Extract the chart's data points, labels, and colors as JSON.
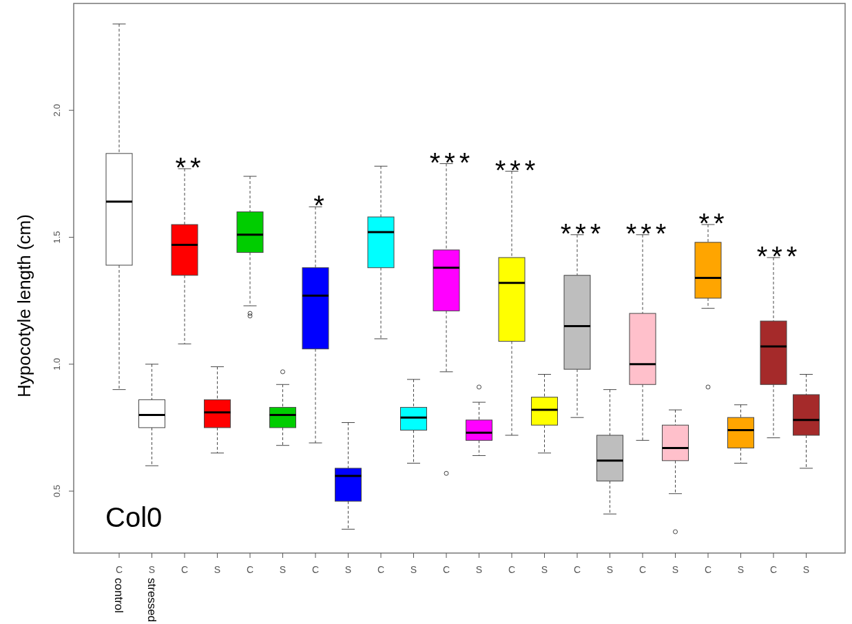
{
  "chart_data": {
    "type": "box",
    "ylabel": "Hypocotyle length (cm)",
    "categories": [
      "C",
      "S",
      "C",
      "S",
      "C",
      "S",
      "C",
      "S",
      "C",
      "S",
      "C",
      "S",
      "C",
      "S",
      "C",
      "S",
      "C",
      "S",
      "C",
      "S",
      "C",
      "S"
    ],
    "ylim": [
      0.256,
      2.421
    ],
    "yticks": [
      {
        "value": 0.5,
        "label": "0.5"
      },
      {
        "value": 1.0,
        "label": "1.0"
      },
      {
        "value": 1.5,
        "label": "1.5"
      },
      {
        "value": 2.0,
        "label": "2.0"
      }
    ],
    "colors": [
      "#ffffff",
      "#ffffff",
      "#ff0000",
      "#ff0000",
      "#00cd00",
      "#00cd00",
      "#0000ff",
      "#0000ff",
      "#00ffff",
      "#00ffff",
      "#ff00ff",
      "#ff00ff",
      "#ffff00",
      "#ffff00",
      "#bebebe",
      "#bebebe",
      "#ffc0cb",
      "#ffc0cb",
      "#ffa500",
      "#ffa500",
      "#a52a2a",
      "#a52a2a"
    ],
    "boxes": [
      {
        "low": 0.9,
        "q1": 1.39,
        "median": 1.64,
        "q3": 1.83,
        "high": 2.34
      },
      {
        "low": 0.6,
        "q1": 0.75,
        "median": 0.8,
        "q3": 0.86,
        "high": 1.0
      },
      {
        "low": 1.08,
        "q1": 1.35,
        "median": 1.47,
        "q3": 1.55,
        "high": 1.77
      },
      {
        "low": 0.65,
        "q1": 0.75,
        "median": 0.81,
        "q3": 0.86,
        "high": 0.99
      },
      {
        "low": 1.23,
        "q1": 1.44,
        "median": 1.51,
        "q3": 1.6,
        "high": 1.74,
        "outliers": [
          1.2,
          1.19
        ]
      },
      {
        "low": 0.68,
        "q1": 0.75,
        "median": 0.8,
        "q3": 0.83,
        "high": 0.92,
        "outliers": [
          0.97
        ]
      },
      {
        "low": 0.69,
        "q1": 1.06,
        "median": 1.27,
        "q3": 1.38,
        "high": 1.62
      },
      {
        "low": 0.35,
        "q1": 0.46,
        "median": 0.56,
        "q3": 0.59,
        "high": 0.77
      },
      {
        "low": 1.1,
        "q1": 1.38,
        "median": 1.52,
        "q3": 1.58,
        "high": 1.78
      },
      {
        "low": 0.61,
        "q1": 0.74,
        "median": 0.79,
        "q3": 0.83,
        "high": 0.94
      },
      {
        "low": 0.97,
        "q1": 1.21,
        "median": 1.38,
        "q3": 1.45,
        "high": 1.79,
        "outliers": [
          0.57
        ]
      },
      {
        "low": 0.64,
        "q1": 0.7,
        "median": 0.73,
        "q3": 0.78,
        "high": 0.85,
        "outliers": [
          0.91
        ]
      },
      {
        "low": 0.72,
        "q1": 1.09,
        "median": 1.32,
        "q3": 1.42,
        "high": 1.76
      },
      {
        "low": 0.65,
        "q1": 0.76,
        "median": 0.82,
        "q3": 0.87,
        "high": 0.96
      },
      {
        "low": 0.79,
        "q1": 0.98,
        "median": 1.15,
        "q3": 1.35,
        "high": 1.51
      },
      {
        "low": 0.41,
        "q1": 0.54,
        "median": 0.62,
        "q3": 0.72,
        "high": 0.9
      },
      {
        "low": 0.7,
        "q1": 0.92,
        "median": 1.0,
        "q3": 1.2,
        "high": 1.51
      },
      {
        "low": 0.49,
        "q1": 0.62,
        "median": 0.67,
        "q3": 0.76,
        "high": 0.82,
        "outliers": [
          0.34
        ]
      },
      {
        "low": 1.22,
        "q1": 1.26,
        "median": 1.34,
        "q3": 1.48,
        "high": 1.55,
        "outliers": [
          0.91
        ]
      },
      {
        "low": 0.61,
        "q1": 0.67,
        "median": 0.74,
        "q3": 0.79,
        "high": 0.84
      },
      {
        "low": 0.71,
        "q1": 0.92,
        "median": 1.07,
        "q3": 1.17,
        "high": 1.42
      },
      {
        "low": 0.59,
        "q1": 0.72,
        "median": 0.78,
        "q3": 0.88,
        "high": 0.96
      }
    ],
    "value_labels": [
      null,
      null,
      "**",
      null,
      null,
      null,
      "*",
      null,
      null,
      null,
      "***",
      null,
      "***",
      null,
      "***",
      null,
      "***",
      null,
      "**",
      null,
      "***",
      null
    ],
    "annotations": [
      "Col0",
      "control",
      "stressed"
    ]
  }
}
